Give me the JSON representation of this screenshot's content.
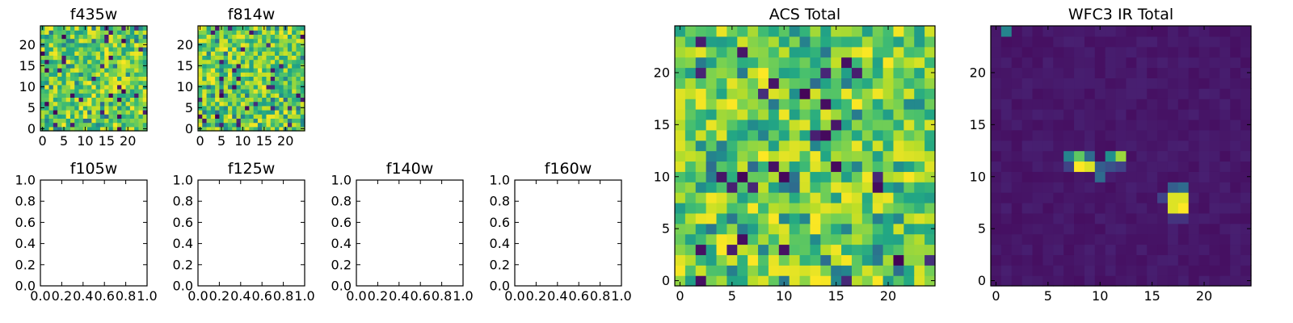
{
  "chart_data": [
    {
      "type": "heatmap",
      "title": "f435w",
      "grid_size": 25,
      "colormap": "viridis",
      "value_range": [
        0,
        1
      ],
      "description": "random noise pattern, values mostly high (green-yellow) with scattered dark cells",
      "xticks": [
        "0",
        "5",
        "10",
        "15",
        "20"
      ],
      "yticks": [
        "0",
        "5",
        "10",
        "15",
        "20"
      ],
      "seed": 11,
      "mode": "noise"
    },
    {
      "type": "heatmap",
      "title": "f814w",
      "grid_size": 25,
      "colormap": "viridis",
      "value_range": [
        0,
        1
      ],
      "xticks": [
        "0",
        "5",
        "10",
        "15",
        "20"
      ],
      "yticks": [
        "0",
        "5",
        "10",
        "15",
        "20"
      ],
      "seed": 23,
      "mode": "noise"
    },
    {
      "type": "table",
      "title": "f105w",
      "empty": true,
      "xlim": [
        0,
        1
      ],
      "ylim": [
        0,
        1
      ],
      "xticks": [
        "0.0",
        "0.2",
        "0.4",
        "0.6",
        "0.8",
        "1.0"
      ],
      "yticks": [
        "0.0",
        "0.2",
        "0.4",
        "0.6",
        "0.8",
        "1.0"
      ]
    },
    {
      "type": "table",
      "title": "f125w",
      "empty": true,
      "xlim": [
        0,
        1
      ],
      "ylim": [
        0,
        1
      ],
      "xticks": [
        "0.0",
        "0.2",
        "0.4",
        "0.6",
        "0.8",
        "1.0"
      ],
      "yticks": [
        "0.0",
        "0.2",
        "0.4",
        "0.6",
        "0.8",
        "1.0"
      ]
    },
    {
      "type": "table",
      "title": "f140w",
      "empty": true,
      "xlim": [
        0,
        1
      ],
      "ylim": [
        0,
        1
      ],
      "xticks": [
        "0.0",
        "0.2",
        "0.4",
        "0.6",
        "0.8",
        "1.0"
      ],
      "yticks": [
        "0.0",
        "0.2",
        "0.4",
        "0.6",
        "0.8",
        "1.0"
      ]
    },
    {
      "type": "table",
      "title": "f160w",
      "empty": true,
      "xlim": [
        0,
        1
      ],
      "ylim": [
        0,
        1
      ],
      "xticks": [
        "0.0",
        "0.2",
        "0.4",
        "0.6",
        "0.8",
        "1.0"
      ],
      "yticks": [
        "0.0",
        "0.2",
        "0.4",
        "0.6",
        "0.8",
        "1.0"
      ]
    },
    {
      "type": "heatmap",
      "title": "ACS Total",
      "grid_size": 25,
      "colormap": "viridis",
      "value_range": [
        0,
        1
      ],
      "xticks": [
        "0",
        "5",
        "10",
        "15",
        "20"
      ],
      "yticks": [
        "0",
        "5",
        "10",
        "15",
        "20"
      ],
      "seed": 37,
      "mode": "noise"
    },
    {
      "type": "heatmap",
      "title": "WFC3 IR Total",
      "grid_size": 25,
      "colormap": "viridis",
      "value_range": [
        0,
        1
      ],
      "xticks": [
        "0",
        "5",
        "10",
        "15",
        "20"
      ],
      "yticks": [
        "0",
        "5",
        "10",
        "15",
        "20"
      ],
      "seed": 5,
      "mode": "sources",
      "background_level": 0.04,
      "sources": [
        {
          "x": 1,
          "y": 24,
          "value": 0.45
        },
        {
          "x": 8,
          "y": 11,
          "value": 1.0
        },
        {
          "x": 9,
          "y": 11,
          "value": 0.95
        },
        {
          "x": 8,
          "y": 12,
          "value": 0.75
        },
        {
          "x": 7,
          "y": 12,
          "value": 0.45
        },
        {
          "x": 9,
          "y": 12,
          "value": 0.35
        },
        {
          "x": 7,
          "y": 11,
          "value": 0.2
        },
        {
          "x": 10,
          "y": 11,
          "value": 0.3
        },
        {
          "x": 10,
          "y": 10,
          "value": 0.35
        },
        {
          "x": 11,
          "y": 12,
          "value": 0.5
        },
        {
          "x": 12,
          "y": 12,
          "value": 0.85
        },
        {
          "x": 11,
          "y": 11,
          "value": 0.25
        },
        {
          "x": 12,
          "y": 11,
          "value": 0.2
        },
        {
          "x": 18,
          "y": 7,
          "value": 1.0
        },
        {
          "x": 17,
          "y": 7,
          "value": 0.95
        },
        {
          "x": 18,
          "y": 8,
          "value": 0.95
        },
        {
          "x": 17,
          "y": 8,
          "value": 0.95
        },
        {
          "x": 17,
          "y": 9,
          "value": 0.3
        },
        {
          "x": 18,
          "y": 9,
          "value": 0.35
        },
        {
          "x": 16,
          "y": 8,
          "value": 0.2
        },
        {
          "x": 17,
          "y": 6,
          "value": 0.15
        },
        {
          "x": 18,
          "y": 6,
          "value": 0.15
        }
      ]
    }
  ]
}
